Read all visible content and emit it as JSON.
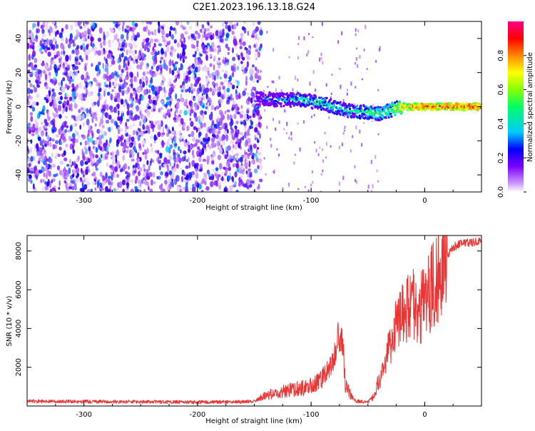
{
  "title": "C2E1.2023.196.13.18.G24",
  "chart_data": [
    {
      "type": "heatmap",
      "title": "C2E1.2023.196.13.18.G24",
      "xlabel": "Height of straight line (km)",
      "ylabel": "Frequency (Hz)",
      "xlim": [
        -350,
        50
      ],
      "ylim": [
        -50,
        50
      ],
      "x_ticks": [
        "-300",
        "-200",
        "-100",
        "0"
      ],
      "y_ticks": [
        "-40",
        "-20",
        "0",
        "20",
        "40"
      ],
      "grid": false,
      "colorbar": {
        "label": "Normalized spectral amplitude",
        "range": [
          0,
          1
        ],
        "ticks": [
          "0.0",
          "0.2",
          "0.4",
          "0.6",
          "0.8"
        ],
        "colors": [
          "#ffffff",
          "#cc99ff",
          "#7b00ff",
          "#0000ff",
          "#00ccff",
          "#00ff66",
          "#88ff00",
          "#ffff00",
          "#ff8800",
          "#ff0000",
          "#ff0088"
        ]
      },
      "features": {
        "noise_region_x": [
          -350,
          -150
        ],
        "noise_amplitude": 0.25,
        "signal_track": [
          {
            "x": -148,
            "y": 5,
            "amp": 0.3
          },
          {
            "x": -130,
            "y": 4,
            "amp": 0.45
          },
          {
            "x": -110,
            "y": 4,
            "amp": 0.55
          },
          {
            "x": -90,
            "y": 2,
            "amp": 0.6
          },
          {
            "x": -70,
            "y": -2,
            "amp": 0.55
          },
          {
            "x": -55,
            "y": -3,
            "amp": 0.6
          },
          {
            "x": -40,
            "y": -4,
            "amp": 0.65
          },
          {
            "x": -30,
            "y": -2,
            "amp": 0.7
          },
          {
            "x": -20,
            "y": 0,
            "amp": 0.85
          },
          {
            "x": 0,
            "y": 0,
            "amp": 0.95
          },
          {
            "x": 30,
            "y": 0,
            "amp": 0.95
          },
          {
            "x": 50,
            "y": 0,
            "amp": 0.95
          }
        ]
      }
    },
    {
      "type": "line",
      "xlabel": "Height of straight line (km)",
      "ylabel": "SNR (10 * v/v)",
      "xlim": [
        -350,
        50
      ],
      "ylim": [
        0,
        8800
      ],
      "x_ticks": [
        "-300",
        "-200",
        "-100",
        "0"
      ],
      "y_ticks": [
        "2000",
        "4000",
        "6000",
        "8000"
      ],
      "grid": false,
      "color": "#ee3333",
      "series": [
        {
          "x": [
            -350,
            -300,
            -250,
            -200,
            -160,
            -150,
            -140,
            -120,
            -100,
            -90,
            -80,
            -75,
            -72,
            -70,
            -65,
            -60,
            -50,
            -45,
            -40,
            -35,
            -30,
            -25,
            -20,
            -15,
            -10,
            -5,
            0,
            5,
            10,
            15,
            20,
            25,
            30,
            40,
            50
          ],
          "y": [
            250,
            230,
            220,
            200,
            220,
            250,
            550,
            800,
            1000,
            1400,
            2500,
            3700,
            3300,
            1200,
            500,
            250,
            200,
            500,
            1300,
            2200,
            3200,
            4200,
            5000,
            5300,
            5200,
            4900,
            5500,
            6000,
            6400,
            7000,
            7800,
            8200,
            8350,
            8450,
            8500
          ]
        }
      ]
    }
  ]
}
